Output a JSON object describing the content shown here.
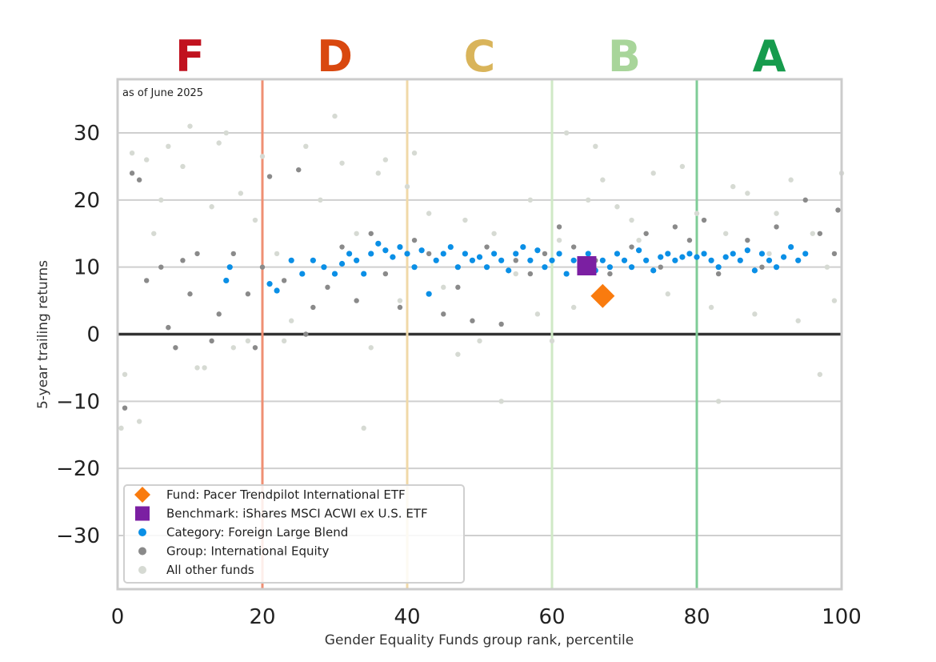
{
  "chart_data": {
    "type": "scatter",
    "xlabel": "Gender Equality Funds group rank, percentile",
    "ylabel": "5-year trailing returns",
    "annotation": "as of June 2025",
    "xlim": [
      0,
      100
    ],
    "ylim": [
      -38,
      38
    ],
    "x_ticks": [
      0,
      20,
      40,
      60,
      80,
      100
    ],
    "y_ticks": [
      -30,
      -20,
      -10,
      0,
      10,
      20,
      30
    ],
    "grid": "horizontal",
    "legend_position": "bottom-left",
    "grades": [
      {
        "label": "F",
        "x": 10,
        "color": "#c1121f"
      },
      {
        "label": "D",
        "x": 30,
        "color": "#d9480f"
      },
      {
        "label": "C",
        "x": 50,
        "color": "#d9b45a"
      },
      {
        "label": "B",
        "x": 70,
        "color": "#a8d59a"
      },
      {
        "label": "A",
        "x": 90,
        "color": "#169b4d"
      }
    ],
    "grade_boundaries": [
      {
        "x": 20,
        "color": "#ef8f73"
      },
      {
        "x": 40,
        "color": "#f0d9a8"
      },
      {
        "x": 60,
        "color": "#cfe9c6"
      },
      {
        "x": 80,
        "color": "#7fcc97"
      },
      {
        "x": 100,
        "color": "#a9dcb8"
      }
    ],
    "series": [
      {
        "name": "Fund: Pacer Trendpilot International ETF",
        "marker": "diamond",
        "color": "#f97b0e",
        "points": [
          [
            67,
            5.7
          ]
        ]
      },
      {
        "name": "Benchmark: iShares MSCI ACWI ex U.S. ETF",
        "marker": "square",
        "color": "#7b1fa2",
        "points": [
          [
            64.8,
            10.2
          ]
        ]
      },
      {
        "name": "Category: Foreign Large Blend",
        "marker": "dot",
        "color": "#0a8fe6",
        "points": [
          [
            15,
            8
          ],
          [
            15.5,
            10
          ],
          [
            21,
            7.5
          ],
          [
            22,
            6.5
          ],
          [
            24,
            11
          ],
          [
            25.5,
            9
          ],
          [
            27,
            11
          ],
          [
            28.5,
            10
          ],
          [
            30,
            9
          ],
          [
            31,
            10.5
          ],
          [
            32,
            12
          ],
          [
            33,
            11
          ],
          [
            34,
            9
          ],
          [
            35,
            12
          ],
          [
            36,
            13.5
          ],
          [
            37,
            12.5
          ],
          [
            38,
            11.5
          ],
          [
            39,
            13
          ],
          [
            40,
            12
          ],
          [
            41,
            10
          ],
          [
            42,
            12.5
          ],
          [
            43,
            6
          ],
          [
            44,
            11
          ],
          [
            45,
            12
          ],
          [
            46,
            13
          ],
          [
            47,
            10
          ],
          [
            48,
            12
          ],
          [
            49,
            11
          ],
          [
            50,
            11.5
          ],
          [
            51,
            10
          ],
          [
            52,
            12
          ],
          [
            53,
            11
          ],
          [
            54,
            9.5
          ],
          [
            55,
            12
          ],
          [
            56,
            13
          ],
          [
            57,
            11
          ],
          [
            58,
            12.5
          ],
          [
            59,
            10
          ],
          [
            60,
            11
          ],
          [
            61,
            12
          ],
          [
            62,
            9
          ],
          [
            63,
            11
          ],
          [
            64,
            10.5
          ],
          [
            65,
            12
          ],
          [
            66,
            9.5
          ],
          [
            67,
            11
          ],
          [
            68,
            10
          ],
          [
            69,
            12
          ],
          [
            70,
            11
          ],
          [
            71,
            10
          ],
          [
            72,
            12.5
          ],
          [
            73,
            11
          ],
          [
            74,
            9.5
          ],
          [
            75,
            11.5
          ],
          [
            76,
            12
          ],
          [
            77,
            11
          ],
          [
            78,
            11.5
          ],
          [
            79,
            12
          ],
          [
            80,
            11.5
          ],
          [
            81,
            12
          ],
          [
            82,
            11
          ],
          [
            83,
            10
          ],
          [
            84,
            11.5
          ],
          [
            85,
            12
          ],
          [
            86,
            11
          ],
          [
            87,
            12.5
          ],
          [
            88,
            9.5
          ],
          [
            89,
            12
          ],
          [
            90,
            11
          ],
          [
            91,
            10
          ],
          [
            92,
            11.5
          ],
          [
            93,
            13
          ],
          [
            94,
            11
          ],
          [
            95,
            12
          ]
        ]
      },
      {
        "name": "Group: International Equity",
        "marker": "dot",
        "color": "#8a8a8a",
        "points": [
          [
            1,
            -11
          ],
          [
            2,
            24
          ],
          [
            3,
            23
          ],
          [
            4,
            8
          ],
          [
            6,
            10
          ],
          [
            7,
            1
          ],
          [
            8,
            -2
          ],
          [
            9,
            11
          ],
          [
            10,
            6
          ],
          [
            11,
            12
          ],
          [
            13,
            -1
          ],
          [
            14,
            3
          ],
          [
            16,
            12
          ],
          [
            18,
            6
          ],
          [
            19,
            -2
          ],
          [
            20,
            10
          ],
          [
            21,
            23.5
          ],
          [
            23,
            8
          ],
          [
            25,
            24.5
          ],
          [
            26,
            0
          ],
          [
            27,
            4
          ],
          [
            29,
            7
          ],
          [
            31,
            13
          ],
          [
            33,
            5
          ],
          [
            35,
            15
          ],
          [
            37,
            9
          ],
          [
            39,
            4
          ],
          [
            41,
            14
          ],
          [
            43,
            12
          ],
          [
            45,
            3
          ],
          [
            47,
            7
          ],
          [
            49,
            2
          ],
          [
            51,
            13
          ],
          [
            53,
            1.5
          ],
          [
            55,
            11
          ],
          [
            57,
            9
          ],
          [
            59,
            12
          ],
          [
            61,
            16
          ],
          [
            63,
            13
          ],
          [
            66,
            11
          ],
          [
            68,
            9
          ],
          [
            71,
            13
          ],
          [
            73,
            15
          ],
          [
            75,
            10
          ],
          [
            77,
            16
          ],
          [
            79,
            14
          ],
          [
            81,
            17
          ],
          [
            83,
            9
          ],
          [
            85,
            12
          ],
          [
            87,
            14
          ],
          [
            89,
            10
          ],
          [
            91,
            16
          ],
          [
            93,
            13
          ],
          [
            95,
            20
          ],
          [
            97,
            15
          ],
          [
            99,
            12
          ],
          [
            99.5,
            18.5
          ]
        ]
      },
      {
        "name": "All other funds",
        "marker": "dot",
        "color": "#d6dad3",
        "points": [
          [
            0.5,
            -14
          ],
          [
            1,
            -6
          ],
          [
            2,
            27
          ],
          [
            3,
            -13
          ],
          [
            4,
            26
          ],
          [
            5,
            15
          ],
          [
            6,
            20
          ],
          [
            7,
            28
          ],
          [
            9,
            25
          ],
          [
            10,
            31
          ],
          [
            11,
            -5
          ],
          [
            12,
            -5
          ],
          [
            13,
            19
          ],
          [
            14,
            28.5
          ],
          [
            15,
            30
          ],
          [
            17,
            21
          ],
          [
            18,
            -1
          ],
          [
            19,
            17
          ],
          [
            20,
            26.5
          ],
          [
            22,
            12
          ],
          [
            24,
            2
          ],
          [
            26,
            28
          ],
          [
            28,
            20
          ],
          [
            30,
            32.5
          ],
          [
            31,
            25.5
          ],
          [
            33,
            15
          ],
          [
            35,
            -2
          ],
          [
            36,
            24
          ],
          [
            37,
            26
          ],
          [
            39,
            5
          ],
          [
            40,
            22
          ],
          [
            41,
            27
          ],
          [
            43,
            18
          ],
          [
            45,
            7
          ],
          [
            47,
            -3
          ],
          [
            48,
            17
          ],
          [
            50,
            -1
          ],
          [
            52,
            15
          ],
          [
            53,
            -10
          ],
          [
            55,
            9
          ],
          [
            57,
            20
          ],
          [
            58,
            3
          ],
          [
            60,
            -1
          ],
          [
            61,
            14
          ],
          [
            62,
            30
          ],
          [
            63,
            4
          ],
          [
            65,
            20
          ],
          [
            66,
            28
          ],
          [
            67,
            23
          ],
          [
            69,
            19
          ],
          [
            71,
            17
          ],
          [
            72,
            14
          ],
          [
            74,
            24
          ],
          [
            76,
            6
          ],
          [
            78,
            25
          ],
          [
            80,
            18
          ],
          [
            82,
            4
          ],
          [
            83,
            -10
          ],
          [
            84,
            15
          ],
          [
            85,
            22
          ],
          [
            87,
            21
          ],
          [
            88,
            3
          ],
          [
            90,
            12
          ],
          [
            91,
            18
          ],
          [
            93,
            23
          ],
          [
            94,
            2
          ],
          [
            96,
            15
          ],
          [
            97,
            -6
          ],
          [
            98,
            10
          ],
          [
            99,
            5
          ],
          [
            100,
            24
          ],
          [
            16,
            -2
          ],
          [
            23,
            -1
          ],
          [
            34,
            -14
          ]
        ]
      }
    ],
    "legend": [
      "Fund: Pacer Trendpilot International ETF",
      "Benchmark: iShares MSCI ACWI ex U.S. ETF",
      "Category: Foreign Large Blend",
      "Group: International Equity",
      "All other funds"
    ]
  }
}
